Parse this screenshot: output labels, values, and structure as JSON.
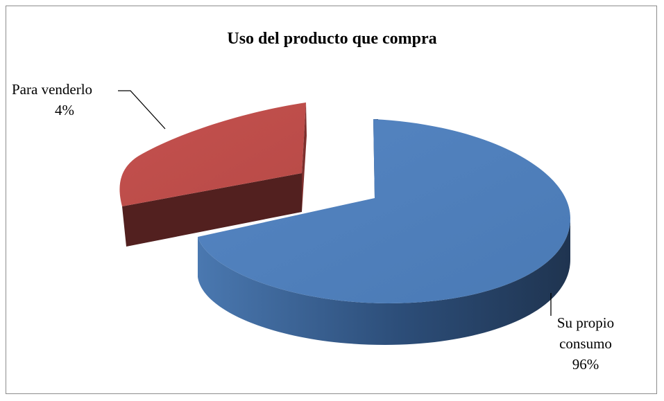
{
  "chart_data": {
    "type": "pie",
    "title": "Uso del producto que compra",
    "labels": [
      "Para venderlo",
      "Su propio consumo"
    ],
    "values": [
      4,
      96
    ],
    "value_labels": [
      "4%",
      "96%"
    ],
    "colors": [
      "#c0504d",
      "#4f81bd"
    ],
    "exploded": true,
    "three_d": true
  },
  "labels": {
    "red_name": "Para venderlo",
    "red_pct": "4%",
    "blue_line1": "Su propio",
    "blue_line2": "consumo",
    "blue_pct": "96%"
  }
}
